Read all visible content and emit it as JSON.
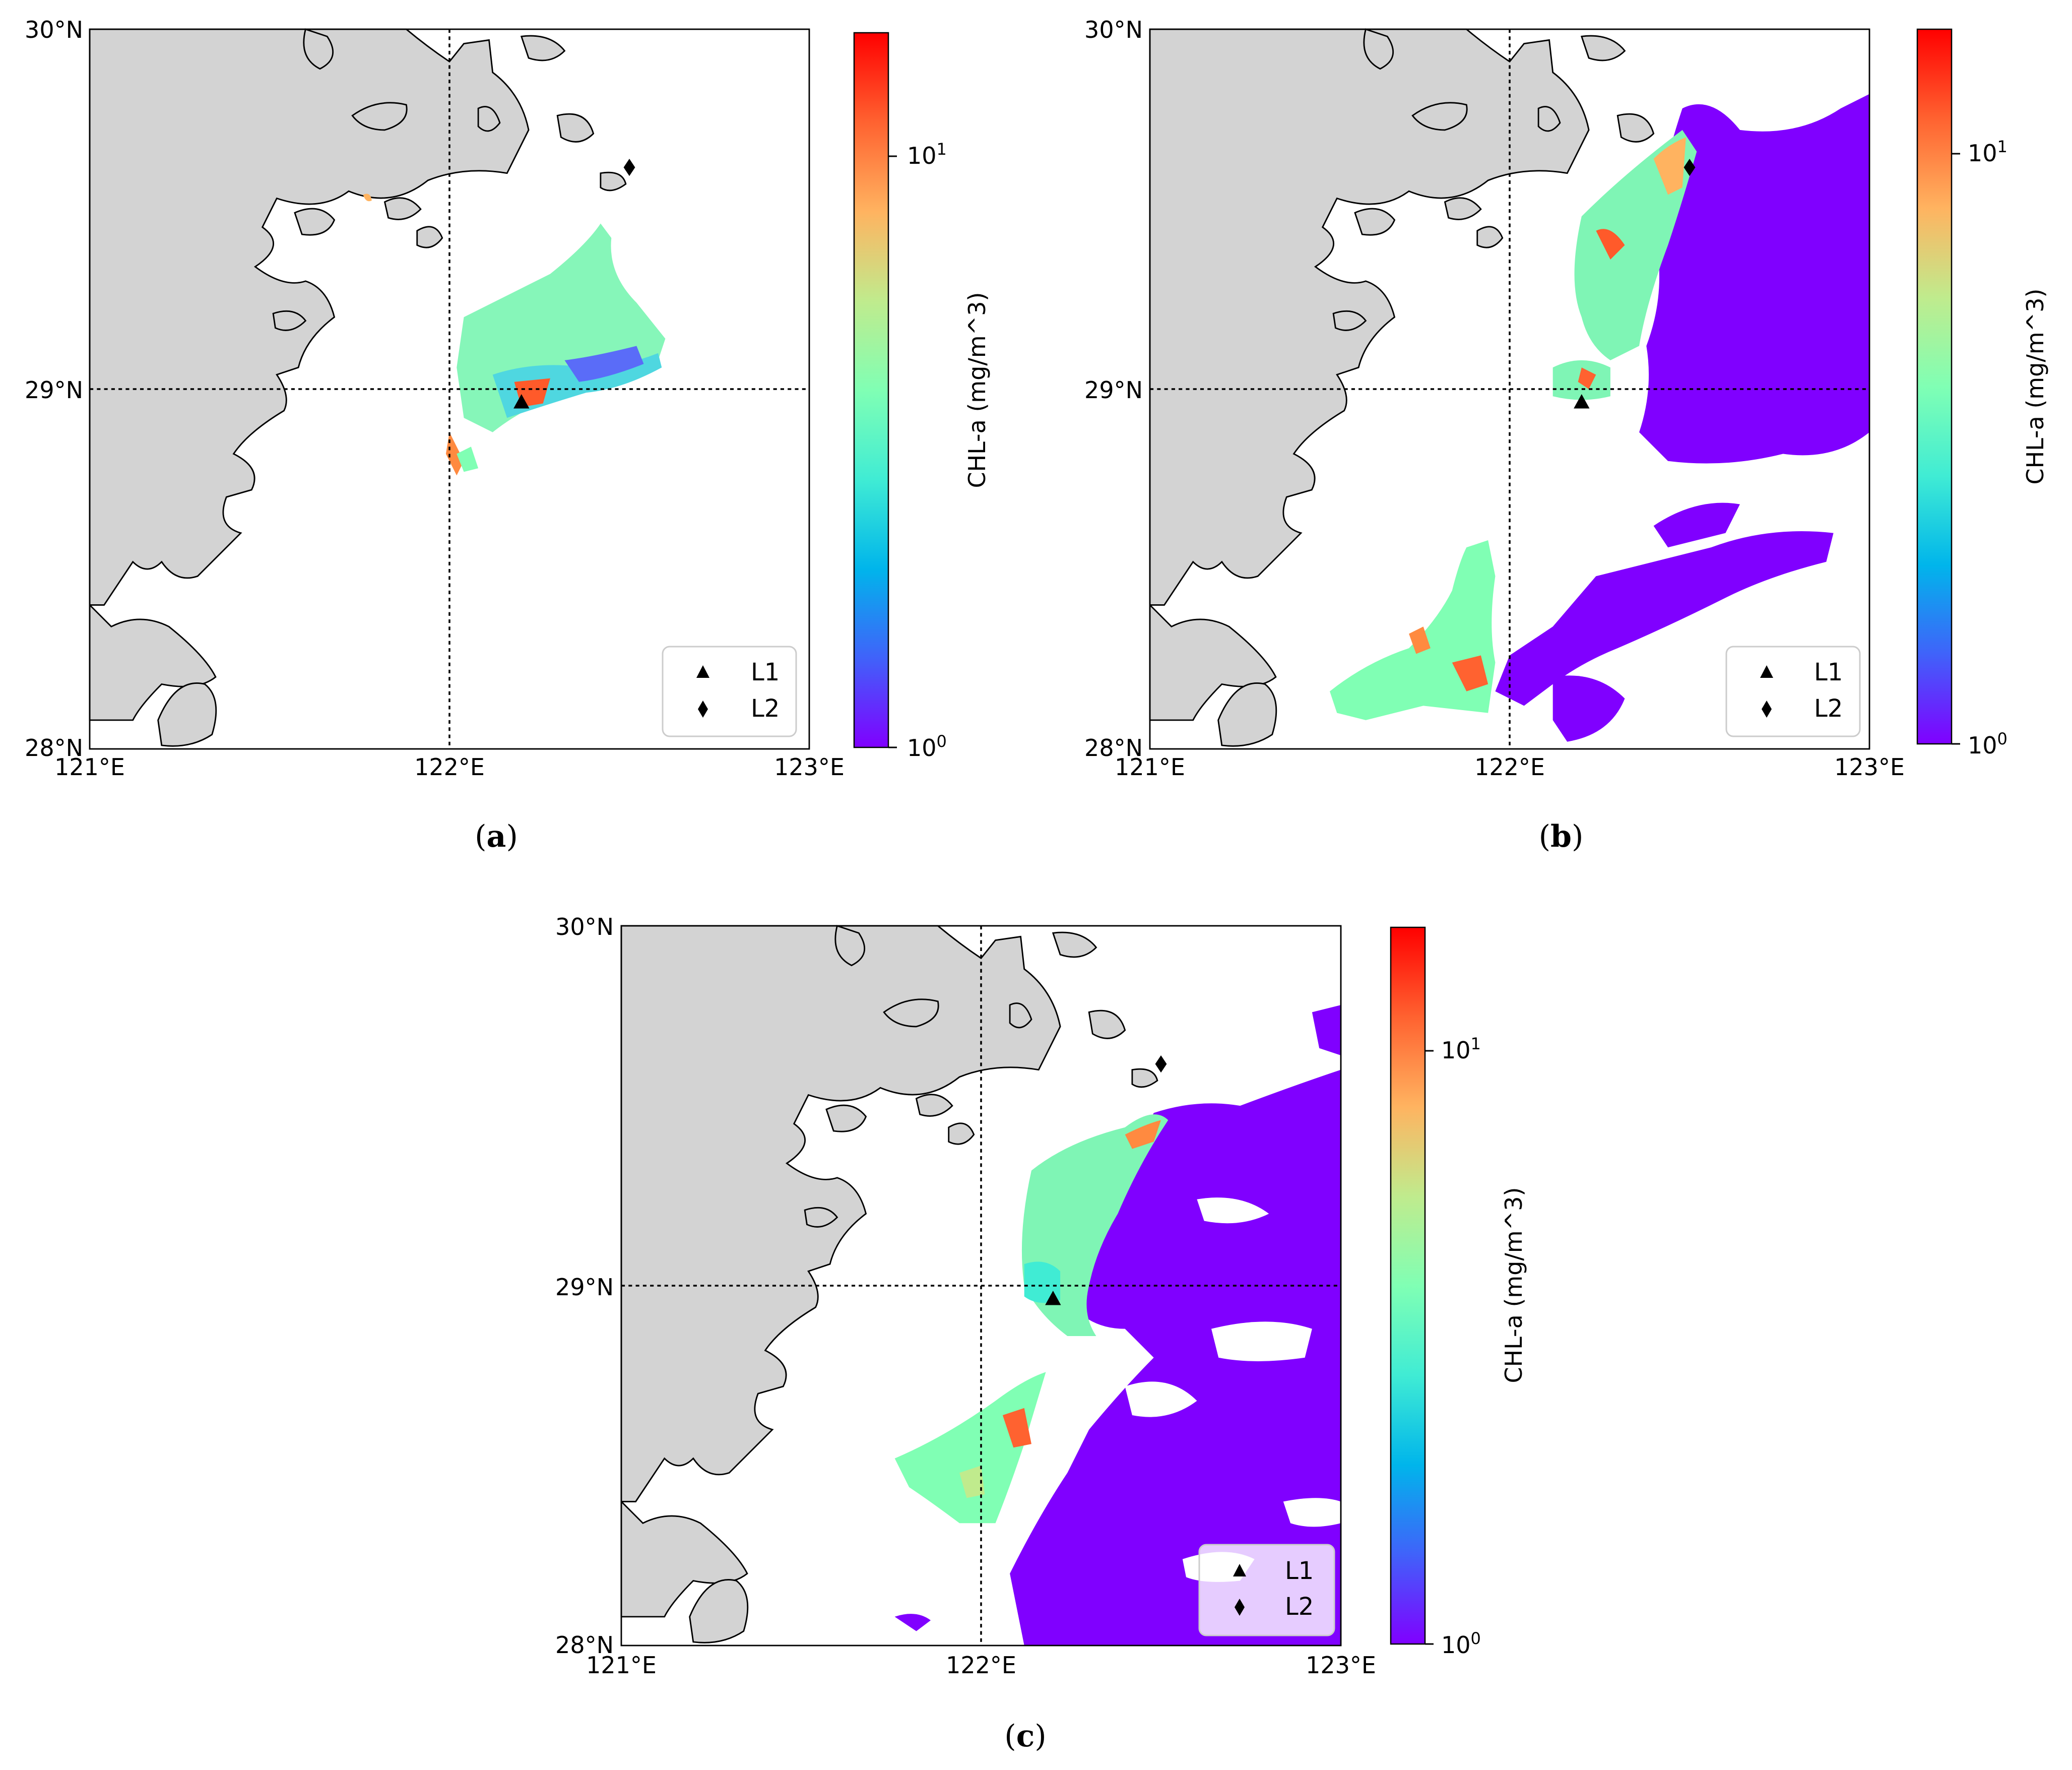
{
  "figure": {
    "panels": [
      {
        "id": "a",
        "caption": {
          "open": "(",
          "letter": "a",
          "close": ")"
        },
        "lat_labels": [
          "30°N",
          "29°N",
          "28°N"
        ],
        "lon_labels": [
          "121°E",
          "122°E",
          "123°E"
        ],
        "extent": {
          "lon_min": 121,
          "lon_max": 123,
          "lat_min": 28,
          "lat_max": 30
        },
        "colorbar": {
          "label": "CHL-a (mg/m^3)",
          "ticks": [
            {
              "base": "10",
              "exp": "1"
            },
            {
              "base": "10",
              "exp": "0"
            }
          ],
          "colormap": "rainbow",
          "scale": "log"
        },
        "legend": [
          {
            "marker": "triangle",
            "label": "L1"
          },
          {
            "marker": "diamond",
            "label": "L2"
          }
        ],
        "stations": [
          {
            "name": "L1",
            "lon": 122.2,
            "lat": 28.96
          },
          {
            "name": "L2",
            "lon": 122.5,
            "lat": 29.62
          }
        ]
      },
      {
        "id": "b",
        "caption": {
          "open": "(",
          "letter": "b",
          "close": ")"
        },
        "lat_labels": [
          "30°N",
          "29°N",
          "28°N"
        ],
        "lon_labels": [
          "121°E",
          "122°E",
          "123°E"
        ],
        "extent": {
          "lon_min": 121,
          "lon_max": 123,
          "lat_min": 28,
          "lat_max": 30
        },
        "colorbar": {
          "label": "CHL-a (mg/m^3)",
          "ticks": [
            {
              "base": "10",
              "exp": "1"
            },
            {
              "base": "10",
              "exp": "0"
            }
          ],
          "colormap": "rainbow",
          "scale": "log"
        },
        "legend": [
          {
            "marker": "triangle",
            "label": "L1"
          },
          {
            "marker": "diamond",
            "label": "L2"
          }
        ],
        "stations": [
          {
            "name": "L1",
            "lon": 122.2,
            "lat": 28.96
          },
          {
            "name": "L2",
            "lon": 122.5,
            "lat": 29.62
          }
        ]
      },
      {
        "id": "c",
        "caption": {
          "open": "(",
          "letter": "c",
          "close": ")"
        },
        "lat_labels": [
          "30°N",
          "29°N",
          "28°N"
        ],
        "lon_labels": [
          "121°E",
          "122°E",
          "123°E"
        ],
        "extent": {
          "lon_min": 121,
          "lon_max": 123,
          "lat_min": 28,
          "lat_max": 30
        },
        "colorbar": {
          "label": "CHL-a (mg/m^3)",
          "ticks": [
            {
              "base": "10",
              "exp": "1"
            },
            {
              "base": "10",
              "exp": "0"
            }
          ],
          "colormap": "rainbow",
          "scale": "log"
        },
        "legend": [
          {
            "marker": "triangle",
            "label": "L1"
          },
          {
            "marker": "diamond",
            "label": "L2"
          }
        ],
        "stations": [
          {
            "name": "L1",
            "lon": 122.2,
            "lat": 28.96
          },
          {
            "name": "L2",
            "lon": 122.5,
            "lat": 29.62
          }
        ]
      }
    ],
    "colors": {
      "land": "#d3d3d3",
      "coastline": "#000000",
      "ocean": "#ffffff",
      "colormap_stops": [
        "#8000ff",
        "#4062fa",
        "#00b5eb",
        "#40ecd4",
        "#80ffb4",
        "#c0eb8d",
        "#ffb360",
        "#ff6230",
        "#ff0000"
      ]
    }
  }
}
